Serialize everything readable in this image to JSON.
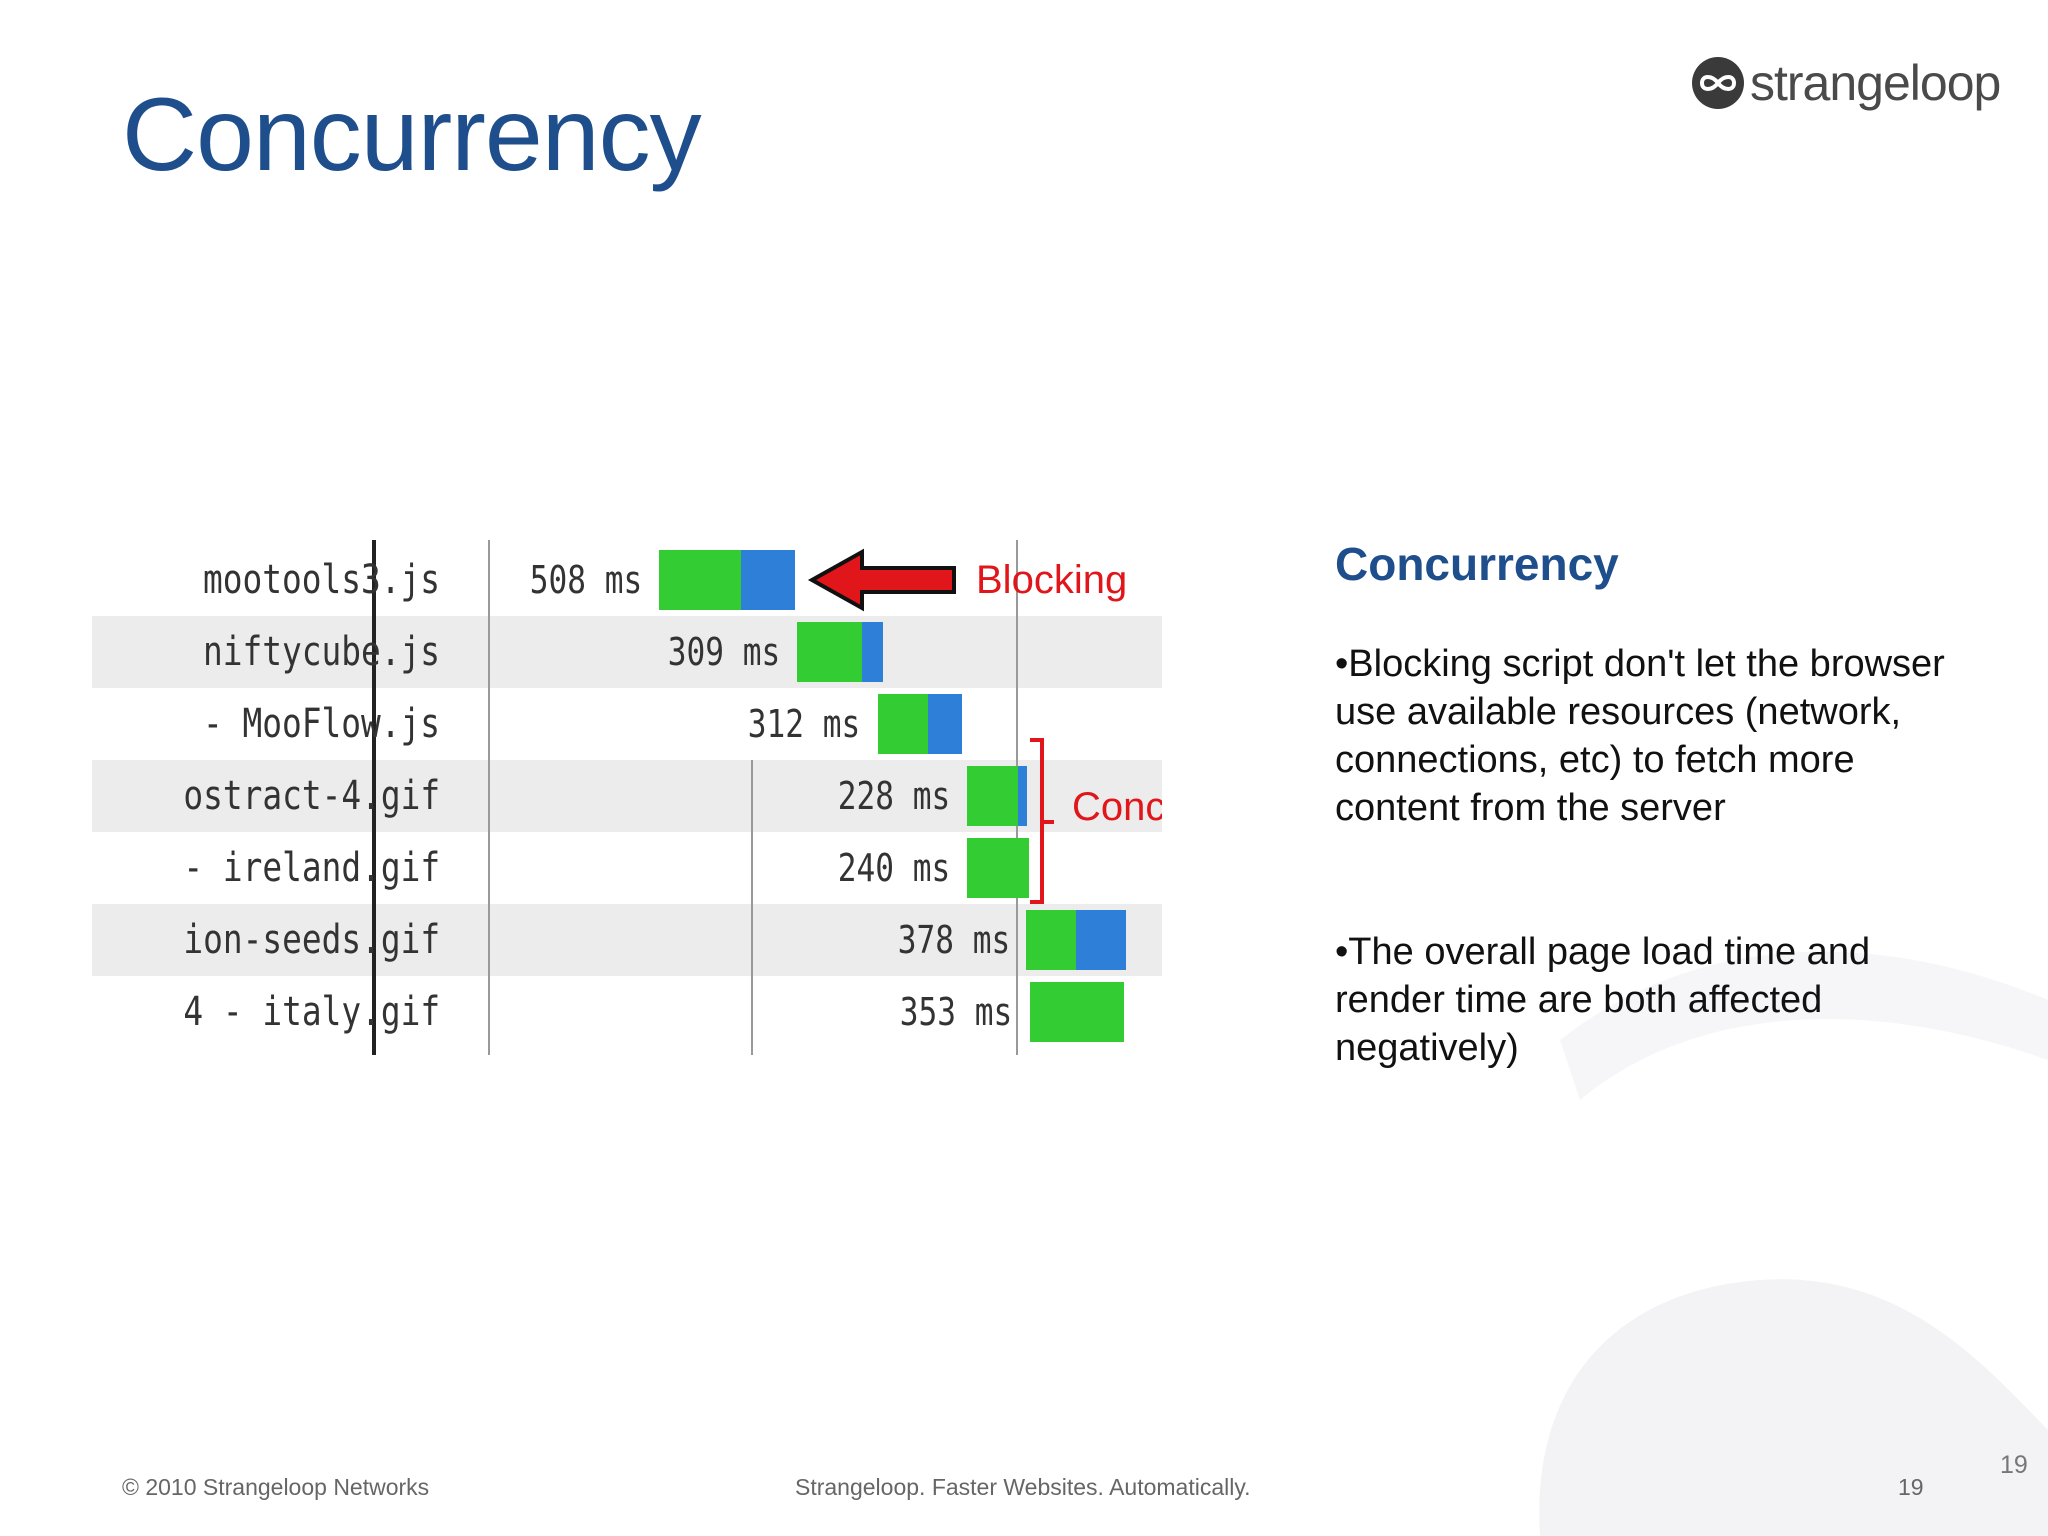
{
  "slide": {
    "title": "Concurrency",
    "logo_text": "strangeloop"
  },
  "waterfall": {
    "rows": [
      {
        "name": "mootools3.js",
        "time": "508 ms",
        "green": 0.6,
        "blue": 0.4
      },
      {
        "name": "niftycube.js",
        "time": "309 ms",
        "green": 0.75,
        "blue": 0.25
      },
      {
        "name": "- MooFlow.js",
        "time": "312 ms",
        "green": 0.6,
        "blue": 0.4
      },
      {
        "name": "ostract-4.gif",
        "time": "228 ms",
        "green": 0.85,
        "blue": 0.15
      },
      {
        "name": "- ireland.gif",
        "time": "240 ms",
        "green": 1.0,
        "blue": 0.0
      },
      {
        "name": "ion-seeds.gif",
        "time": "378 ms",
        "green": 0.5,
        "blue": 0.5
      },
      {
        "name": "4 - italy.gif",
        "time": "353 ms",
        "green": 1.0,
        "blue": 0.0
      }
    ],
    "annotations": {
      "blocking": "Blocking",
      "concurrent": "Concurrent"
    },
    "colors": {
      "green": "#33cc33",
      "blue": "#2d7fd8",
      "annotation": "#e0161b"
    }
  },
  "side_panel": {
    "heading": "Concurrency",
    "bullets": [
      "•Blocking script don't let the browser use available resources (network, connections, etc) to fetch more content from the server",
      "•The overall page load time and render time are both affected negatively)"
    ]
  },
  "footer": {
    "copyright": "© 2010 Strangeloop Networks",
    "tagline": "Strangeloop. Faster Websites. Automatically.",
    "page_number": "19",
    "page_number_corner": "19"
  }
}
